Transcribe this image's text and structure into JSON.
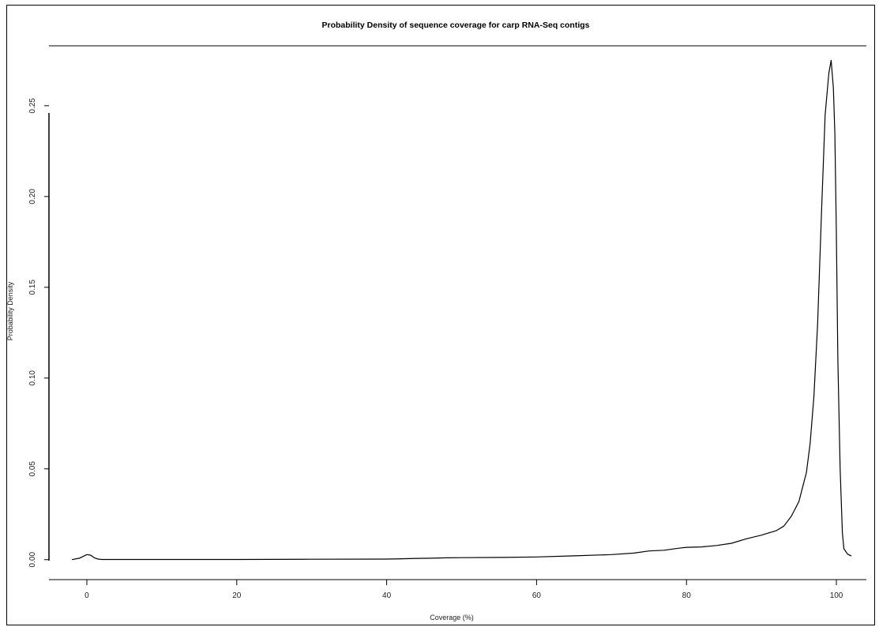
{
  "chart_data": {
    "type": "line",
    "title": "Probability Density of sequence coverage for carp RNA-Seq contigs",
    "xlabel": "Coverage (%)",
    "ylabel": "Probability Density",
    "xlim": [
      -4,
      104
    ],
    "ylim": [
      -0.011,
      0.283
    ],
    "x_ticks": [
      "0",
      "20",
      "40",
      "60",
      "80",
      "100"
    ],
    "y_ticks": [
      "0.00",
      "0.05",
      "0.10",
      "0.15",
      "0.20",
      "0.25"
    ],
    "grid": false,
    "legend": "none",
    "line_color": "#000000",
    "series": [
      {
        "x": [
          -2,
          -1,
          0,
          0.5,
          1,
          1.5,
          2,
          5,
          10,
          20,
          30,
          40,
          42,
          44,
          46,
          48,
          50,
          55,
          60,
          65,
          70,
          73,
          75,
          77,
          79,
          80,
          82,
          84,
          86,
          88,
          90,
          92,
          93,
          94,
          95,
          96,
          96.5,
          97,
          97.5,
          98,
          98.5,
          99,
          99.3,
          99.6,
          99.8,
          100,
          100.2,
          100.5,
          100.8,
          101,
          101.5,
          102
        ],
        "y": [
          0.0,
          0.0008,
          0.0028,
          0.0025,
          0.001,
          0.0003,
          0.0001,
          0.0001,
          0.0001,
          0.0001,
          0.0002,
          0.0003,
          0.0005,
          0.0007,
          0.0008,
          0.001,
          0.0011,
          0.0012,
          0.0015,
          0.0021,
          0.0028,
          0.0036,
          0.0048,
          0.0052,
          0.0063,
          0.0068,
          0.007,
          0.0078,
          0.009,
          0.0115,
          0.0135,
          0.016,
          0.0185,
          0.024,
          0.032,
          0.048,
          0.064,
          0.09,
          0.13,
          0.19,
          0.245,
          0.268,
          0.275,
          0.26,
          0.235,
          0.18,
          0.11,
          0.05,
          0.015,
          0.006,
          0.003,
          0.002
        ]
      }
    ]
  }
}
